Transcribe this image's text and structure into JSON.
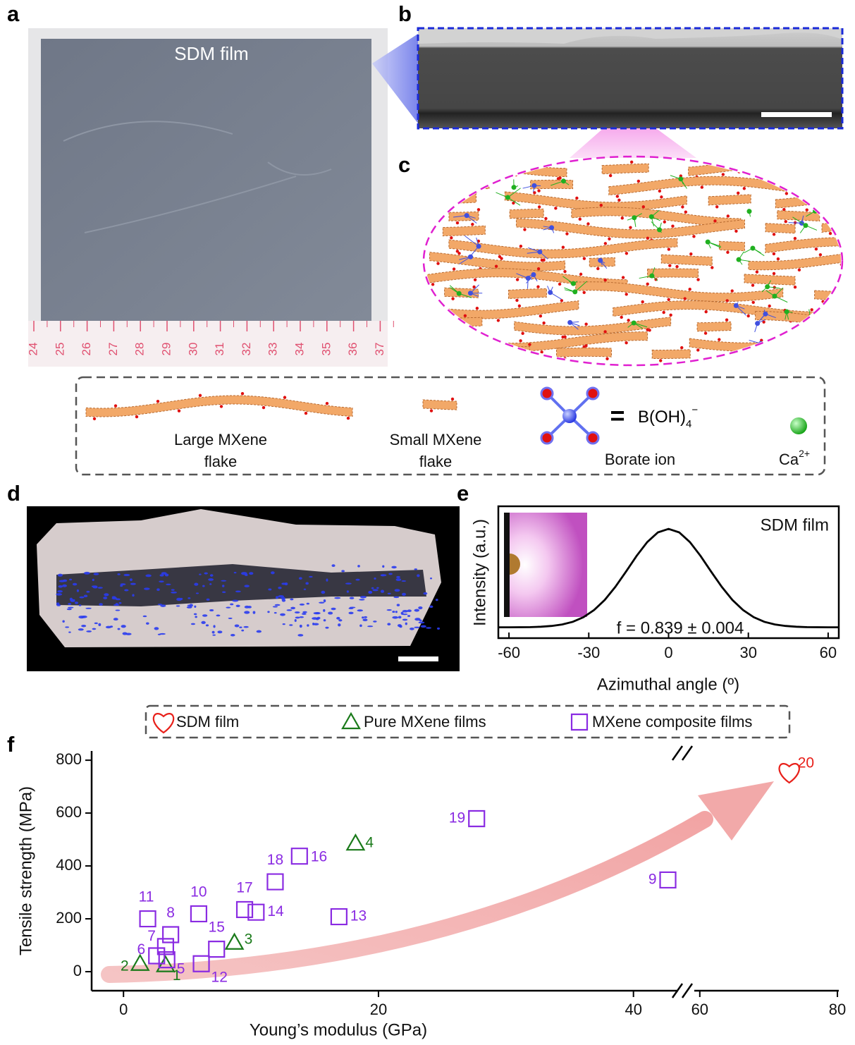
{
  "panel_labels": [
    "a",
    "b",
    "c",
    "d",
    "e",
    "f"
  ],
  "panel_a": {
    "film_label": "SDM film",
    "ruler_labels": [
      "24",
      "25",
      "26",
      "27",
      "28",
      "29",
      "30",
      "31",
      "32",
      "33",
      "34",
      "35",
      "36",
      "37"
    ]
  },
  "scheme_legend": {
    "large_flake": [
      "Large MXene",
      "flake"
    ],
    "small_flake": [
      "Small MXene",
      "flake"
    ],
    "equals": "=",
    "borate_formula": {
      "base": "B(OH)",
      "sub": "4",
      "sup": "−"
    },
    "borate_label": "Borate ion",
    "calcium": {
      "base": "Ca",
      "sup": "2+"
    }
  },
  "chart_data": [
    {
      "type": "line",
      "title": "SDM film",
      "annotation": "f = 0.839 ± 0.004",
      "x_label": "Azimuthal angle (º)",
      "y_label": "Intensity (a.u.)",
      "x": [
        -64,
        -60,
        -56,
        -52,
        -48,
        -44,
        -40,
        -36,
        -32,
        -28,
        -24,
        -20,
        -16,
        -12,
        -8,
        -4,
        0,
        4,
        8,
        12,
        16,
        20,
        24,
        28,
        32,
        36,
        40,
        44,
        48,
        52,
        56,
        60,
        64
      ],
      "values": [
        0,
        0,
        0.001,
        0.002,
        0.006,
        0.014,
        0.029,
        0.056,
        0.103,
        0.175,
        0.278,
        0.411,
        0.566,
        0.726,
        0.867,
        0.965,
        1,
        0.965,
        0.867,
        0.726,
        0.566,
        0.411,
        0.278,
        0.175,
        0.103,
        0.056,
        0.029,
        0.014,
        0.006,
        0.002,
        0.001,
        0,
        0
      ],
      "color": "#000000",
      "xlim": [
        -64,
        64
      ],
      "xticks": [
        -60,
        -30,
        0,
        30,
        60
      ],
      "ylim": [
        -0.11,
        1.23
      ]
    },
    {
      "type": "scatter",
      "x_label": "Young’s modulus (GPa)",
      "y_label": "Tensile strength (MPa)",
      "xlim": [
        -2.5,
        80.2
      ],
      "xbreak": [
        43.5,
        59.2
      ],
      "xticks": [
        0,
        20,
        40,
        60,
        80
      ],
      "ylim": [
        -72,
        835
      ],
      "yticks": [
        0,
        200,
        400,
        600,
        800
      ],
      "series": [
        {
          "name": "SDM film",
          "marker": "heart",
          "color": "#e8201a",
          "x": [
            73
          ],
          "values": [
            755
          ],
          "point_labels": [
            "20"
          ]
        },
        {
          "name": "Pure MXene films",
          "marker": "triangle",
          "color": "#1a7a1a",
          "x": [
            3.3,
            1.3,
            8.7,
            18.2
          ],
          "values": [
            25,
            30,
            110,
            485
          ],
          "point_labels": [
            "1",
            "2",
            "3",
            "4"
          ]
        },
        {
          "name": "MXene composite films",
          "marker": "square",
          "color": "#8a2be2",
          "x": [
            3.4,
            2.6,
            3.3,
            3.7,
            42.7,
            5.9,
            1.9,
            6.1,
            16.9,
            10.4,
            7.3,
            13.8,
            9.5,
            11.9,
            27.7
          ],
          "values": [
            45,
            60,
            95,
            140,
            347,
            219,
            200,
            30,
            208,
            225,
            85,
            437,
            235,
            340,
            579
          ],
          "point_labels": [
            "5",
            "6",
            "7",
            "8",
            "9",
            "10",
            "11",
            "12",
            "13",
            "14",
            "15",
            "16",
            "17",
            "18",
            "19"
          ]
        }
      ]
    }
  ]
}
